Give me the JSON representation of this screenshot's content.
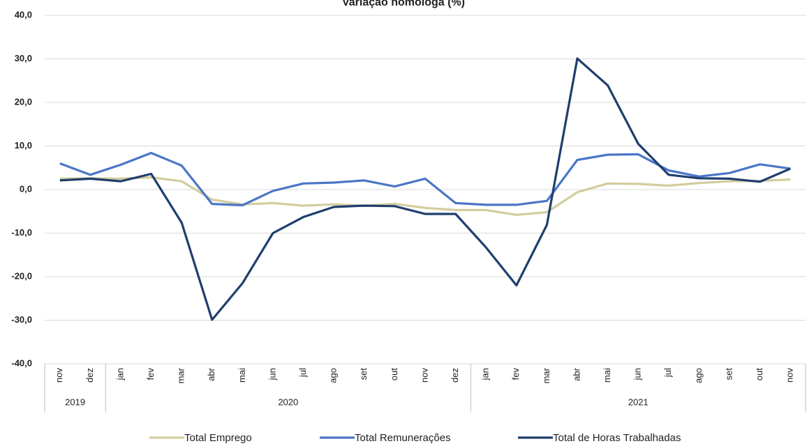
{
  "chart_data": {
    "type": "line",
    "title": "Variação homóloga (%)",
    "categories": [
      "nov",
      "dez",
      "jan",
      "fev",
      "mar",
      "abr",
      "mai",
      "jun",
      "jul",
      "ago",
      "set",
      "out",
      "nov",
      "dez",
      "jan",
      "fev",
      "mar",
      "abr",
      "mai",
      "jun",
      "jul",
      "ago",
      "set",
      "out",
      "nov"
    ],
    "groups": [
      {
        "label": "2019",
        "count": 2
      },
      {
        "label": "2020",
        "count": 12
      },
      {
        "label": "2021",
        "count": 11
      }
    ],
    "series": [
      {
        "name": "Total Emprego",
        "color": "#d3cc9e",
        "values": [
          2.5,
          2.6,
          2.5,
          2.8,
          1.9,
          -2.3,
          -3.4,
          -3.1,
          -3.7,
          -3.4,
          -3.7,
          -3.3,
          -4.2,
          -4.7,
          -4.7,
          -5.8,
          -5.2,
          -0.6,
          1.4,
          1.3,
          0.9,
          1.5,
          1.9,
          2.0,
          2.3
        ]
      },
      {
        "name": "Total Remunerações",
        "color": "#4a76c8",
        "values": [
          6.0,
          3.4,
          5.7,
          8.4,
          5.5,
          -3.3,
          -3.6,
          -0.3,
          1.4,
          1.6,
          2.1,
          0.7,
          2.5,
          -3.1,
          -3.5,
          -3.5,
          -2.6,
          6.8,
          8.0,
          8.1,
          4.4,
          3.0,
          3.8,
          5.8,
          4.8
        ]
      },
      {
        "name": "Total de Horas Trabalhadas",
        "color": "#1f3e6d",
        "values": [
          2.1,
          2.5,
          1.9,
          3.6,
          -7.6,
          -29.9,
          -21.5,
          -10.0,
          -6.3,
          -4.0,
          -3.7,
          -3.8,
          -5.6,
          -5.6,
          -13.3,
          -22.0,
          -8.1,
          30.1,
          23.9,
          10.5,
          3.4,
          2.6,
          2.5,
          1.8,
          4.8
        ]
      }
    ],
    "ylim": [
      -40,
      40
    ],
    "yticks": [
      {
        "value": -40,
        "label": "-40,0"
      },
      {
        "value": -30,
        "label": "-30,0"
      },
      {
        "value": -20,
        "label": "-20,0"
      },
      {
        "value": -10,
        "label": "-10,0"
      },
      {
        "value": 0,
        "label": "0,0"
      },
      {
        "value": 10,
        "label": "10,0"
      },
      {
        "value": 20,
        "label": "20,0"
      },
      {
        "value": 30,
        "label": "30,0"
      },
      {
        "value": 40,
        "label": "40,0"
      }
    ],
    "grid": true,
    "legend": "bottom"
  }
}
